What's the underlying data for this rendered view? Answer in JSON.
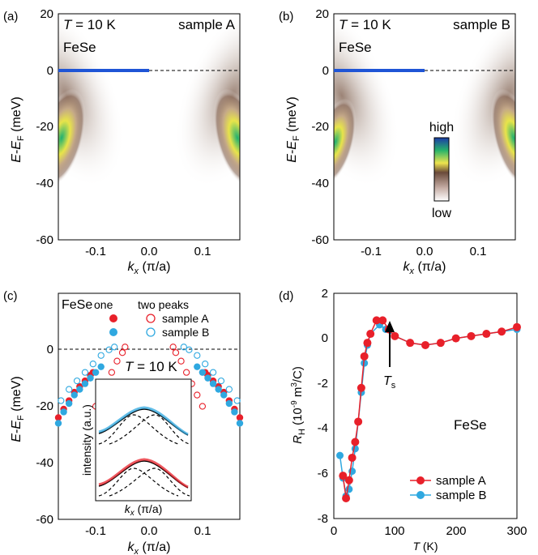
{
  "colors": {
    "sample_a": "#e8202a",
    "sample_b": "#2fa8e0",
    "dispersion": "#1f55d6"
  },
  "panels": {
    "a": {
      "label": "(a)",
      "temperature": "T = 10 K",
      "temp_var": "T",
      "temp_val": " = 10 K",
      "sample": "sample A",
      "material": "FeSe"
    },
    "b": {
      "label": "(b)",
      "temperature": "T = 10 K",
      "temp_var": "T",
      "temp_val": " = 10 K",
      "sample": "sample B",
      "material": "FeSe",
      "colorbar_high": "high",
      "colorbar_low": "low"
    },
    "c": {
      "label": "(c)",
      "material": "FeSe",
      "legend_one": "one",
      "legend_two": "two peaks",
      "legend_sample_a": "sample A",
      "legend_sample_b": "sample B",
      "temp_var": "T",
      "temp_val": " = 10 K",
      "inset_ylabel": "intensity (a.u.)",
      "inset_xlabel": "kx (π/a)"
    },
    "d": {
      "label": "(d)",
      "material": "FeSe",
      "ts_label": "Ts",
      "legend_a": "sample A",
      "legend_b": "sample B"
    }
  },
  "axes": {
    "energy_label": "E-EF (meV)",
    "kx_label": "kx (π/a)",
    "rh_label": "RH (10-9 m3/C)",
    "t_label": "T (K)",
    "energy_ticks": [
      "20",
      "0",
      "-20",
      "-40",
      "-60"
    ],
    "kx_ticks": [
      "-0.1",
      "0.0",
      "0.1"
    ],
    "rh_ticks": [
      "2",
      "0",
      "-2",
      "-4",
      "-6",
      "-8"
    ],
    "t_ticks": [
      "0",
      "100",
      "200",
      "300"
    ]
  },
  "chart_data": [
    {
      "type": "heatmap",
      "panel": "a",
      "title": "sample A",
      "xlabel": "kx (π/a)",
      "ylabel": "E-EF (meV)",
      "xlim": [
        -0.17,
        0.17
      ],
      "ylim": [
        -60,
        20
      ],
      "fermi_level_line": {
        "y": 0,
        "solid_x": [
          -0.17,
          0.0
        ],
        "dashed_x": [
          0.0,
          0.17
        ]
      },
      "bands": [
        {
          "side": "left",
          "points": [
            [
              -0.13,
              -10
            ],
            [
              -0.155,
              -20
            ],
            [
              -0.17,
              -30
            ]
          ]
        },
        {
          "side": "right",
          "points": [
            [
              0.13,
              -10
            ],
            [
              0.155,
              -20
            ],
            [
              0.17,
              -30
            ]
          ]
        }
      ]
    },
    {
      "type": "heatmap",
      "panel": "b",
      "title": "sample B",
      "xlabel": "kx (π/a)",
      "ylabel": "E-EF (meV)",
      "xlim": [
        -0.17,
        0.17
      ],
      "ylim": [
        -60,
        20
      ],
      "fermi_level_line": {
        "y": 0,
        "solid_x": [
          -0.17,
          0.0
        ],
        "dashed_x": [
          0.0,
          0.17
        ]
      },
      "colorbar": {
        "high": "high",
        "low": "low"
      }
    },
    {
      "type": "scatter",
      "panel": "c",
      "xlabel": "kx (π/a)",
      "ylabel": "E-EF (meV)",
      "xlim": [
        -0.17,
        0.17
      ],
      "ylim": [
        -60,
        20
      ],
      "series": [
        {
          "name": "sample A",
          "marker": "filled",
          "x": [
            -0.17,
            -0.16,
            -0.15,
            -0.14,
            -0.13,
            -0.12,
            -0.11,
            -0.105,
            0.105,
            0.11,
            0.12,
            0.13,
            0.14,
            0.15,
            0.16,
            0.17
          ],
          "y": [
            -24,
            -21,
            -18,
            -15,
            -13,
            -11,
            -9,
            -8,
            -8,
            -9,
            -11,
            -13,
            -15,
            -18,
            -21,
            -24
          ]
        },
        {
          "name": "sample A",
          "marker": "open",
          "x": [
            -0.1,
            -0.09,
            -0.08,
            -0.07,
            -0.06,
            -0.05,
            -0.045,
            0.045,
            0.05,
            0.06,
            0.07,
            0.08,
            0.09,
            0.1
          ],
          "y": [
            -20,
            -16,
            -12,
            -8,
            -4,
            -1,
            1,
            1,
            -1,
            -4,
            -8,
            -12,
            -16,
            -20
          ]
        },
        {
          "name": "sample B",
          "marker": "filled",
          "x": [
            -0.17,
            -0.16,
            -0.15,
            -0.14,
            -0.13,
            -0.12,
            -0.11,
            -0.1,
            -0.09,
            0.09,
            0.1,
            0.11,
            0.12,
            0.13,
            0.14,
            0.15,
            0.16,
            0.17
          ],
          "y": [
            -26,
            -22,
            -19,
            -16,
            -14,
            -12,
            -10,
            -8,
            -6,
            -6,
            -8,
            -10,
            -12,
            -14,
            -16,
            -19,
            -22,
            -26
          ]
        },
        {
          "name": "sample B",
          "marker": "open",
          "x": [
            -0.165,
            -0.15,
            -0.135,
            -0.12,
            -0.105,
            -0.09,
            -0.075,
            -0.065,
            0.065,
            0.075,
            0.09,
            0.105,
            0.12,
            0.135,
            0.15,
            0.165
          ],
          "y": [
            -18,
            -14,
            -11,
            -8,
            -5,
            -2,
            0,
            1,
            1,
            0,
            -2,
            -5,
            -8,
            -11,
            -14,
            -18
          ]
        }
      ]
    },
    {
      "type": "line",
      "panel": "d",
      "xlabel": "T (K)",
      "ylabel": "RH (10-9 m3/C)",
      "xlim": [
        0,
        300
      ],
      "ylim": [
        -8,
        2
      ],
      "annotation": {
        "text": "Ts",
        "x": 80
      },
      "legend": "bottom-right",
      "series": [
        {
          "name": "sample A",
          "x": [
            15,
            20,
            25,
            30,
            35,
            40,
            45,
            50,
            55,
            60,
            70,
            80,
            90,
            100,
            125,
            150,
            175,
            200,
            225,
            250,
            275,
            300
          ],
          "y": [
            -6.1,
            -7.1,
            -6.3,
            -5.3,
            -4.6,
            -3.7,
            -2.2,
            -0.8,
            -0.2,
            0.2,
            0.8,
            0.8,
            0.4,
            0.1,
            -0.2,
            -0.3,
            -0.2,
            0.0,
            0.1,
            0.2,
            0.3,
            0.5
          ]
        },
        {
          "name": "sample B",
          "x": [
            10,
            15,
            20,
            25,
            30,
            35,
            40,
            45,
            50,
            55,
            60,
            75,
            85,
            100,
            125,
            150,
            175,
            200,
            225,
            250,
            275,
            300
          ],
          "y": [
            -5.2,
            -6.2,
            -7.0,
            -6.7,
            -5.9,
            -4.9,
            -3.7,
            -2.4,
            -1.1,
            -0.3,
            0.2,
            0.6,
            0.4,
            0.1,
            -0.2,
            -0.3,
            -0.2,
            0.0,
            0.1,
            0.2,
            0.3,
            0.4
          ]
        }
      ]
    }
  ]
}
